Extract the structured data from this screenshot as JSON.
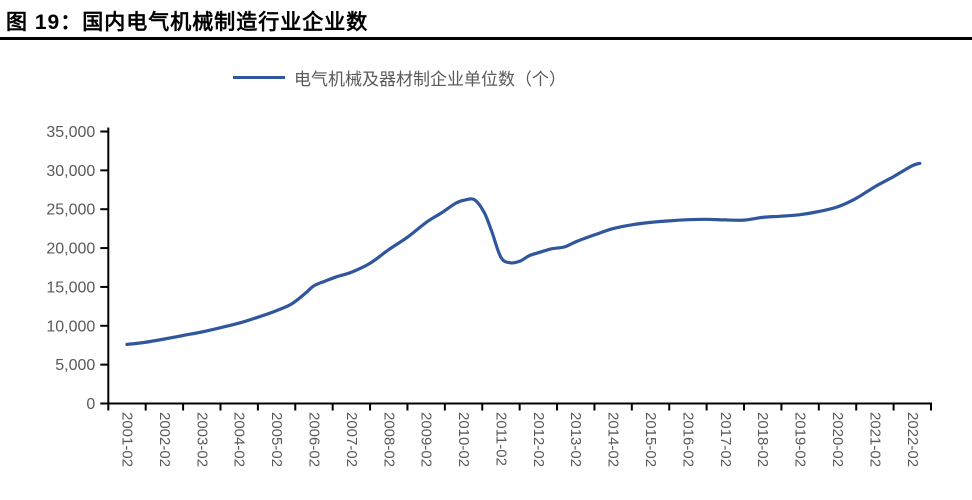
{
  "figure": {
    "title": "图 19：国内电气机械制造行业企业数"
  },
  "chart_data": {
    "type": "line",
    "title": "国内电气机械制造行业企业数",
    "legend_position": "top-center",
    "grid": false,
    "categories": [
      "2001-02",
      "2002-02",
      "2003-02",
      "2004-02",
      "2005-02",
      "2006-02",
      "2007-02",
      "2008-02",
      "2009-02",
      "2010-02",
      "2011-02",
      "2012-02",
      "2013-02",
      "2014-02",
      "2015-02",
      "2016-02",
      "2017-02",
      "2018-02",
      "2019-02",
      "2020-02",
      "2021-02",
      "2022-02"
    ],
    "series": [
      {
        "name": "电气机械及器材制企业单位数（个）",
        "values": [
          7600,
          8300,
          9200,
          10350,
          11950,
          15150,
          16900,
          19800,
          23300,
          26200,
          18700,
          19400,
          20800,
          22500,
          23300,
          23650,
          23620,
          23950,
          24300,
          25300,
          27900,
          30600
        ]
      }
    ],
    "ylabel": "",
    "xlabel": "",
    "ylim": [
      0,
      35000
    ],
    "ytick_step": 5000,
    "line_color": "#30569B",
    "axis_color": "#000000",
    "tick_label_color": "#595959",
    "samples": [
      [
        0,
        7600
      ],
      [
        0.45,
        7850
      ],
      [
        1,
        8300
      ],
      [
        1.5,
        8750
      ],
      [
        2,
        9200
      ],
      [
        2.5,
        9750
      ],
      [
        3,
        10350
      ],
      [
        3.5,
        11100
      ],
      [
        4,
        11950
      ],
      [
        4.4,
        12800
      ],
      [
        4.75,
        14100
      ],
      [
        5,
        15150
      ],
      [
        5.3,
        15750
      ],
      [
        5.6,
        16300
      ],
      [
        6,
        16900
      ],
      [
        6.5,
        18050
      ],
      [
        7,
        19800
      ],
      [
        7.5,
        21400
      ],
      [
        8,
        23300
      ],
      [
        8.4,
        24500
      ],
      [
        8.8,
        25800
      ],
      [
        9.05,
        26200
      ],
      [
        9.3,
        26200
      ],
      [
        9.55,
        24600
      ],
      [
        9.75,
        22200
      ],
      [
        10,
        18800
      ],
      [
        10.25,
        18100
      ],
      [
        10.5,
        18300
      ],
      [
        10.75,
        19000
      ],
      [
        11,
        19400
      ],
      [
        11.35,
        19900
      ],
      [
        11.7,
        20150
      ],
      [
        12,
        20800
      ],
      [
        12.5,
        21700
      ],
      [
        13,
        22500
      ],
      [
        13.5,
        23000
      ],
      [
        14,
        23300
      ],
      [
        14.5,
        23500
      ],
      [
        15,
        23650
      ],
      [
        15.5,
        23700
      ],
      [
        16,
        23620
      ],
      [
        16.5,
        23600
      ],
      [
        17,
        23950
      ],
      [
        17.5,
        24100
      ],
      [
        18,
        24300
      ],
      [
        18.5,
        24700
      ],
      [
        19,
        25300
      ],
      [
        19.5,
        26400
      ],
      [
        20,
        27900
      ],
      [
        20.5,
        29200
      ],
      [
        21,
        30600
      ],
      [
        21.2,
        30900
      ]
    ]
  }
}
